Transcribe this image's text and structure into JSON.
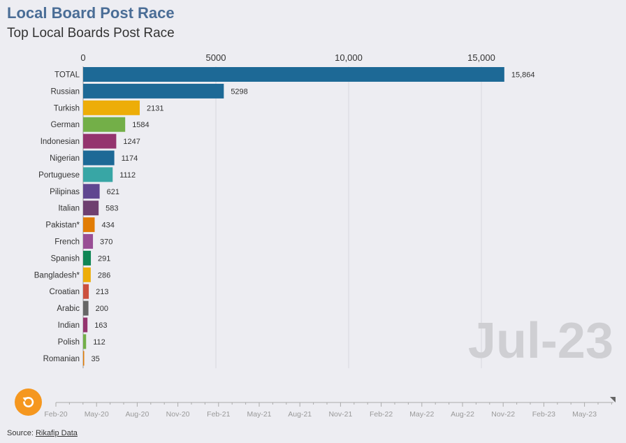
{
  "header": {
    "title": "Local Board Post Race",
    "subtitle": "Top Local Boards Post Race"
  },
  "current_period": "Jul-23",
  "timeline": {
    "labels": [
      "Feb-20",
      "May-20",
      "Aug-20",
      "Nov-20",
      "Feb-21",
      "May-21",
      "Aug-21",
      "Nov-21",
      "Feb-22",
      "May-22",
      "Aug-22",
      "Nov-22",
      "Feb-23",
      "May-23"
    ]
  },
  "footer": {
    "source_prefix": "Source: ",
    "source_link": "Rikafip Data"
  },
  "icons": {
    "replay": "replay-icon"
  },
  "chart_data": {
    "type": "bar",
    "orientation": "horizontal",
    "xlim": [
      0,
      17500
    ],
    "x_ticks": [
      {
        "value": 0,
        "label": "0"
      },
      {
        "value": 5000,
        "label": "5000"
      },
      {
        "value": 10000,
        "label": "10,000"
      },
      {
        "value": 15000,
        "label": "15,000"
      }
    ],
    "grid": true,
    "categories": [
      "TOTAL",
      "Russian",
      "Turkish",
      "German",
      "Indonesian",
      "Nigerian",
      "Portuguese",
      "Pilipinas",
      "Italian",
      "Pakistan*",
      "French",
      "Spanish",
      "Bangladesh*",
      "Croatian",
      "Arabic",
      "Indian",
      "Polish",
      "Romanian"
    ],
    "values": [
      15864,
      5298,
      2131,
      1584,
      1247,
      1174,
      1112,
      621,
      583,
      434,
      370,
      291,
      286,
      213,
      200,
      163,
      112,
      35
    ],
    "value_labels": [
      "15,864",
      "5298",
      "2131",
      "1584",
      "1247",
      "1174",
      "1112",
      "621",
      "583",
      "434",
      "370",
      "291",
      "286",
      "213",
      "200",
      "163",
      "112",
      "35"
    ],
    "colors": [
      "#1d6996",
      "#1d6996",
      "#edad08",
      "#73af48",
      "#94346e",
      "#1d6996",
      "#38a6a5",
      "#5f4690",
      "#6f4070",
      "#e17c05",
      "#994e95",
      "#0f8554",
      "#edad08",
      "#cc503e",
      "#666666",
      "#94346e",
      "#73af48",
      "#e17c05"
    ]
  }
}
